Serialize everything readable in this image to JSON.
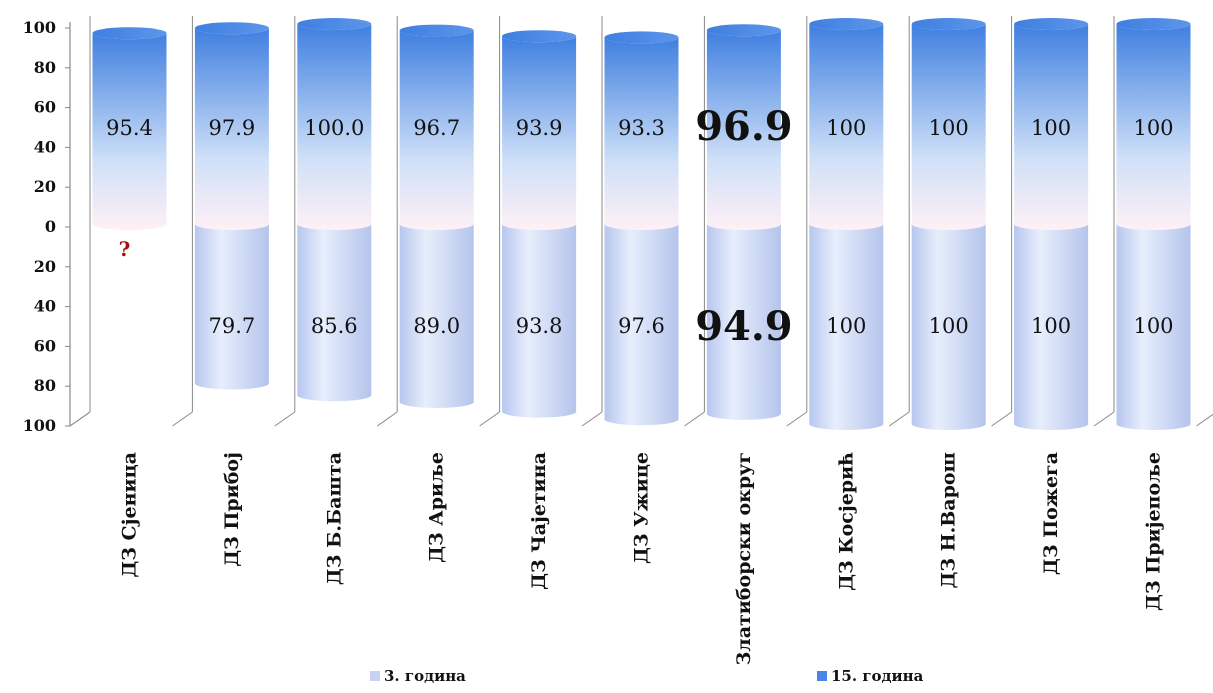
{
  "chart_data": {
    "type": "bar",
    "subtype": "3d-cylinder-opposed",
    "categories": [
      "ДЗ Сјеница",
      "ДЗ Прибој",
      "ДЗ Б.Башта",
      "ДЗ Ариље",
      "ДЗ Чајетина",
      "ДЗ Ужице",
      "Златиборски округ",
      "ДЗ Косјерић",
      "ДЗ Н.Варош",
      "ДЗ Пожега",
      "ДЗ Пријепоље"
    ],
    "series": [
      {
        "name": "3. година",
        "direction": "down",
        "values": [
          null,
          79.7,
          85.6,
          89.0,
          93.8,
          97.6,
          94.9,
          100,
          100,
          100,
          100
        ],
        "labels": [
          "?",
          "79.7",
          "85.6",
          "89.0",
          "93.8",
          "97.6",
          "94.9",
          "100",
          "100",
          "100",
          "100"
        ],
        "color": "#c7d2f3"
      },
      {
        "name": "15. година",
        "direction": "up",
        "values": [
          95.4,
          97.9,
          100.0,
          96.7,
          93.9,
          93.3,
          96.9,
          100,
          100,
          100,
          100
        ],
        "labels": [
          "95.4",
          "97.9",
          "100.0",
          "96.7",
          "93.9",
          "93.3",
          "96.9",
          "100",
          "100",
          "100",
          "100"
        ],
        "color": "#4a86e8"
      }
    ],
    "highlight_category": "Златиборски округ",
    "yticks": [
      "100",
      "80",
      "60",
      "40",
      "20",
      "0",
      "20",
      "40",
      "60",
      "80",
      "100"
    ],
    "ylim": [
      -100,
      100
    ],
    "legend_position": "bottom",
    "grid": false
  }
}
